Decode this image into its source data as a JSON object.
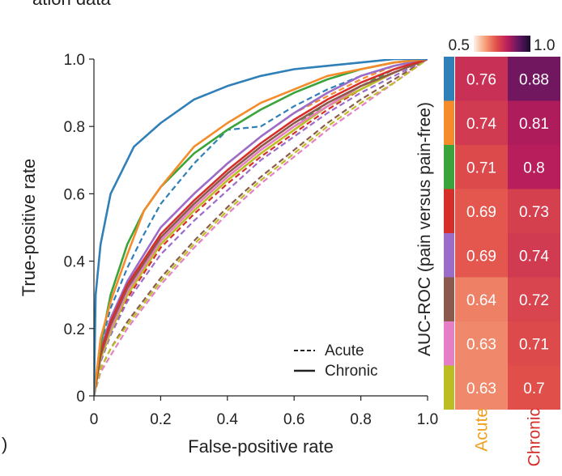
{
  "header_fragment": "ation data",
  "panel_label_fragment": ")",
  "chart_data": [
    {
      "type": "line",
      "title": "",
      "xlabel": "False-positive rate",
      "ylabel": "True-positive rate",
      "xlim": [
        0,
        1
      ],
      "ylim": [
        0,
        1
      ],
      "xticks": [
        "0",
        "0.2",
        "0.4",
        "0.6",
        "0.8",
        "1.0"
      ],
      "yticks": [
        "0",
        "0.2",
        "0.4",
        "0.6",
        "0.8",
        "1.0"
      ],
      "legend": [
        {
          "label": "Acute",
          "style": "dashed"
        },
        {
          "label": "Chronic",
          "style": "solid"
        }
      ],
      "legend_position": "bottom-right",
      "series": [
        {
          "name": "blue chronic",
          "color": "#2f7fb8",
          "style": "solid",
          "auc": 0.88,
          "x": [
            0,
            0.005,
            0.02,
            0.05,
            0.08,
            0.12,
            0.2,
            0.3,
            0.4,
            0.5,
            0.6,
            0.7,
            0.8,
            0.9,
            1.0
          ],
          "y": [
            0,
            0.3,
            0.45,
            0.6,
            0.66,
            0.74,
            0.81,
            0.88,
            0.92,
            0.95,
            0.97,
            0.98,
            0.99,
            1.0,
            1.0
          ]
        },
        {
          "name": "orange chronic",
          "color": "#f58b2a",
          "style": "solid",
          "auc": 0.81,
          "x": [
            0,
            0.02,
            0.05,
            0.1,
            0.15,
            0.2,
            0.3,
            0.4,
            0.5,
            0.6,
            0.7,
            0.8,
            0.9,
            1.0
          ],
          "y": [
            0,
            0.17,
            0.28,
            0.42,
            0.55,
            0.62,
            0.74,
            0.81,
            0.87,
            0.91,
            0.95,
            0.97,
            0.99,
            1.0
          ]
        },
        {
          "name": "green chronic",
          "color": "#3aa43a",
          "style": "solid",
          "auc": 0.8,
          "x": [
            0,
            0.02,
            0.05,
            0.1,
            0.15,
            0.2,
            0.3,
            0.4,
            0.5,
            0.6,
            0.7,
            0.8,
            0.9,
            1.0
          ],
          "y": [
            0,
            0.15,
            0.3,
            0.45,
            0.55,
            0.62,
            0.72,
            0.79,
            0.85,
            0.9,
            0.94,
            0.97,
            0.99,
            1.0
          ]
        },
        {
          "name": "red chronic",
          "color": "#d62f2a",
          "style": "solid",
          "auc": 0.73,
          "x": [
            0,
            0.02,
            0.05,
            0.1,
            0.2,
            0.3,
            0.4,
            0.5,
            0.6,
            0.7,
            0.8,
            0.9,
            1.0
          ],
          "y": [
            0,
            0.13,
            0.22,
            0.33,
            0.48,
            0.58,
            0.67,
            0.75,
            0.82,
            0.88,
            0.93,
            0.97,
            1.0
          ]
        },
        {
          "name": "purple chronic",
          "color": "#9b6cc8",
          "style": "solid",
          "auc": 0.74,
          "x": [
            0,
            0.02,
            0.05,
            0.1,
            0.2,
            0.3,
            0.4,
            0.5,
            0.6,
            0.7,
            0.8,
            0.9,
            1.0
          ],
          "y": [
            0,
            0.14,
            0.23,
            0.34,
            0.5,
            0.6,
            0.69,
            0.77,
            0.84,
            0.9,
            0.95,
            0.98,
            1.0
          ]
        },
        {
          "name": "brown chronic",
          "color": "#8c5a4c",
          "style": "solid",
          "auc": 0.72,
          "x": [
            0,
            0.02,
            0.05,
            0.1,
            0.2,
            0.3,
            0.4,
            0.5,
            0.6,
            0.7,
            0.8,
            0.9,
            1.0
          ],
          "y": [
            0,
            0.12,
            0.21,
            0.32,
            0.47,
            0.57,
            0.66,
            0.74,
            0.81,
            0.87,
            0.92,
            0.96,
            1.0
          ]
        },
        {
          "name": "pink chronic",
          "color": "#e57ec4",
          "style": "solid",
          "auc": 0.71,
          "x": [
            0,
            0.02,
            0.05,
            0.1,
            0.2,
            0.3,
            0.4,
            0.5,
            0.6,
            0.7,
            0.8,
            0.9,
            1.0
          ],
          "y": [
            0,
            0.12,
            0.2,
            0.31,
            0.46,
            0.56,
            0.65,
            0.73,
            0.8,
            0.86,
            0.92,
            0.96,
            1.0
          ]
        },
        {
          "name": "olive chronic",
          "color": "#bcbd22",
          "style": "solid",
          "auc": 0.7,
          "x": [
            0,
            0.02,
            0.05,
            0.1,
            0.2,
            0.3,
            0.4,
            0.5,
            0.6,
            0.7,
            0.8,
            0.9,
            1.0
          ],
          "y": [
            0,
            0.11,
            0.19,
            0.3,
            0.45,
            0.55,
            0.64,
            0.72,
            0.79,
            0.86,
            0.91,
            0.96,
            1.0
          ]
        },
        {
          "name": "blue acute",
          "color": "#2f7fb8",
          "style": "dashed",
          "auc": 0.76,
          "x": [
            0,
            0.02,
            0.05,
            0.1,
            0.15,
            0.2,
            0.3,
            0.4,
            0.5,
            0.6,
            0.7,
            0.8,
            0.9,
            1.0
          ],
          "y": [
            0,
            0.15,
            0.26,
            0.38,
            0.48,
            0.57,
            0.69,
            0.79,
            0.8,
            0.86,
            0.91,
            0.95,
            0.98,
            1.0
          ]
        },
        {
          "name": "orange acute",
          "color": "#f58b2a",
          "style": "dashed",
          "auc": 0.74,
          "x": [
            0,
            0.02,
            0.05,
            0.1,
            0.2,
            0.3,
            0.4,
            0.5,
            0.6,
            0.7,
            0.8,
            0.9,
            1.0
          ],
          "y": [
            0,
            0.13,
            0.22,
            0.34,
            0.5,
            0.6,
            0.69,
            0.77,
            0.84,
            0.89,
            0.94,
            0.98,
            1.0
          ]
        },
        {
          "name": "green acute",
          "color": "#3aa43a",
          "style": "dashed",
          "auc": 0.71,
          "x": [
            0,
            0.02,
            0.05,
            0.1,
            0.2,
            0.3,
            0.4,
            0.5,
            0.6,
            0.7,
            0.8,
            0.9,
            1.0
          ],
          "y": [
            0,
            0.12,
            0.2,
            0.31,
            0.46,
            0.56,
            0.65,
            0.73,
            0.8,
            0.87,
            0.92,
            0.97,
            1.0
          ]
        },
        {
          "name": "red acute",
          "color": "#d62f2a",
          "style": "dashed",
          "auc": 0.69,
          "x": [
            0,
            0.02,
            0.05,
            0.1,
            0.2,
            0.3,
            0.4,
            0.5,
            0.6,
            0.7,
            0.8,
            0.9,
            1.0
          ],
          "y": [
            0,
            0.11,
            0.19,
            0.29,
            0.44,
            0.54,
            0.63,
            0.71,
            0.78,
            0.85,
            0.91,
            0.96,
            1.0
          ]
        },
        {
          "name": "purple acute",
          "color": "#9b6cc8",
          "style": "dashed",
          "auc": 0.69,
          "x": [
            0,
            0.02,
            0.05,
            0.1,
            0.2,
            0.3,
            0.4,
            0.5,
            0.6,
            0.7,
            0.8,
            0.9,
            1.0
          ],
          "y": [
            0,
            0.1,
            0.18,
            0.28,
            0.42,
            0.52,
            0.61,
            0.7,
            0.77,
            0.84,
            0.9,
            0.95,
            1.0
          ]
        },
        {
          "name": "brown acute",
          "color": "#8c5a4c",
          "style": "dashed",
          "auc": 0.64,
          "x": [
            0,
            0.02,
            0.05,
            0.1,
            0.2,
            0.3,
            0.4,
            0.5,
            0.6,
            0.7,
            0.8,
            0.9,
            1.0
          ],
          "y": [
            0,
            0.08,
            0.14,
            0.22,
            0.35,
            0.46,
            0.56,
            0.65,
            0.73,
            0.81,
            0.88,
            0.94,
            1.0
          ]
        },
        {
          "name": "pink acute",
          "color": "#e57ec4",
          "style": "dashed",
          "auc": 0.63,
          "x": [
            0,
            0.02,
            0.05,
            0.1,
            0.2,
            0.3,
            0.4,
            0.5,
            0.6,
            0.7,
            0.8,
            0.9,
            1.0
          ],
          "y": [
            0,
            0.07,
            0.12,
            0.2,
            0.33,
            0.44,
            0.54,
            0.63,
            0.71,
            0.79,
            0.86,
            0.93,
            1.0
          ]
        },
        {
          "name": "olive acute",
          "color": "#bcbd22",
          "style": "dashed",
          "auc": 0.63,
          "x": [
            0,
            0.02,
            0.05,
            0.1,
            0.2,
            0.3,
            0.4,
            0.5,
            0.6,
            0.7,
            0.8,
            0.9,
            1.0
          ],
          "y": [
            0,
            0.08,
            0.14,
            0.21,
            0.34,
            0.45,
            0.55,
            0.64,
            0.72,
            0.8,
            0.87,
            0.93,
            1.0
          ]
        }
      ]
    },
    {
      "type": "heatmap",
      "title": "",
      "ylabel": "AUC-ROC (pain versus pain-free)",
      "columns": [
        "Acute",
        "Chronic"
      ],
      "column_colors": [
        "#f0a020",
        "#d62f2a"
      ],
      "row_colors": [
        "#2f7fb8",
        "#f58b2a",
        "#3aa43a",
        "#d62f2a",
        "#9b6cc8",
        "#8c5a4c",
        "#e57ec4",
        "#bcbd22"
      ],
      "values": [
        [
          0.76,
          0.88
        ],
        [
          0.74,
          0.81
        ],
        [
          0.71,
          0.8
        ],
        [
          0.69,
          0.73
        ],
        [
          0.69,
          0.74
        ],
        [
          0.64,
          0.72
        ],
        [
          0.63,
          0.71
        ],
        [
          0.63,
          0.7
        ]
      ],
      "colorbar": {
        "min": 0.5,
        "max": 1.0,
        "min_label": "0.5",
        "max_label": "1.0",
        "stops": [
          "#fdf1e6",
          "#f6a079",
          "#e14f4a",
          "#b81d5c",
          "#5e1660",
          "#1a0b2e"
        ]
      }
    }
  ]
}
